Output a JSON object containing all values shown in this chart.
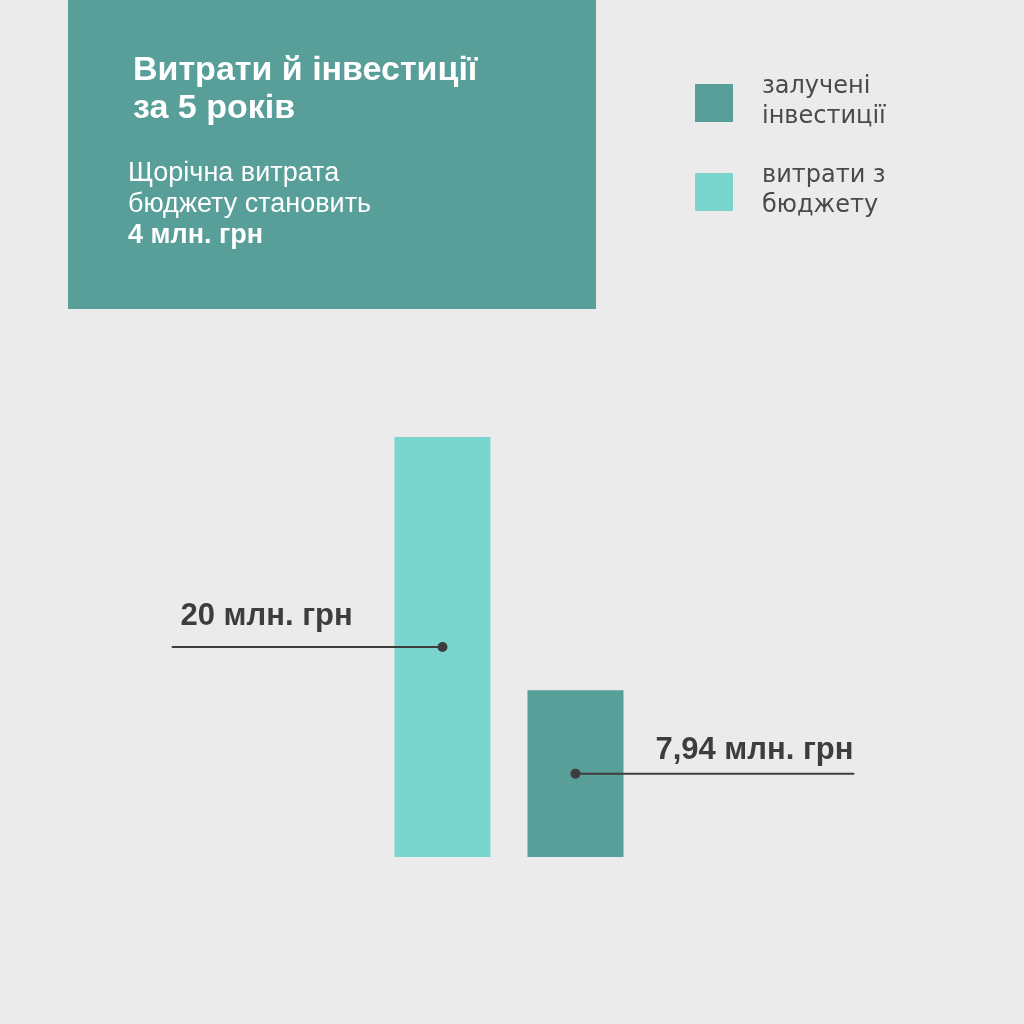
{
  "chart_data": {
    "type": "bar",
    "title": "Витрати й інвестиції за 5 років",
    "subtitle": "Щорічна витрата бюджету становить",
    "annotations": [
      "4 млн. грн"
    ],
    "categories": [
      null,
      null
    ],
    "stacked": true,
    "series": [
      {
        "name": "витрати з бюджету",
        "color": "#7ad5ce",
        "values": [
          20,
          null
        ],
        "value_labels": [
          "20 млн. грн",
          null
        ]
      },
      {
        "name": "залучені інвестиції",
        "color": "#589e99",
        "values": [
          null,
          7.94
        ],
        "value_labels": [
          null,
          "7,94 млн. грн"
        ]
      }
    ],
    "legend": "top right"
  }
}
